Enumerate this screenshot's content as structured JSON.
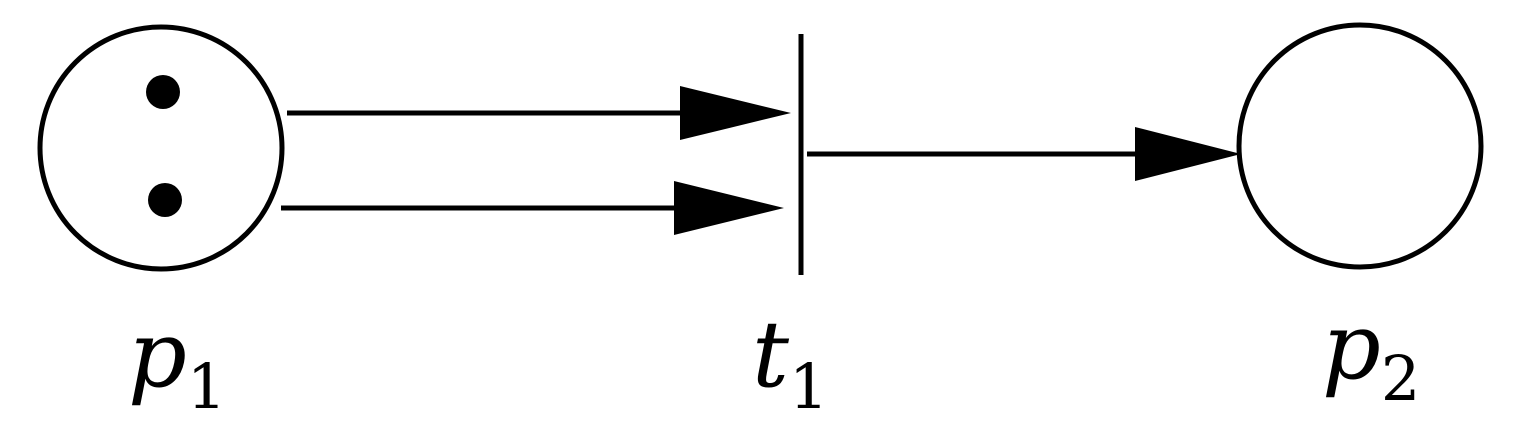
{
  "diagram": {
    "type": "petri-net",
    "places": [
      {
        "id": "p1",
        "label_base": "p",
        "label_sub": "1",
        "tokens": 2
      },
      {
        "id": "p2",
        "label_base": "p",
        "label_sub": "2",
        "tokens": 0
      }
    ],
    "transitions": [
      {
        "id": "t1",
        "label_base": "t",
        "label_sub": "1"
      }
    ],
    "arcs": [
      {
        "from": "p1",
        "to": "t1"
      },
      {
        "from": "p1",
        "to": "t1"
      },
      {
        "from": "t1",
        "to": "p2"
      }
    ],
    "colors": {
      "stroke": "#000000",
      "background": "#ffffff"
    }
  }
}
